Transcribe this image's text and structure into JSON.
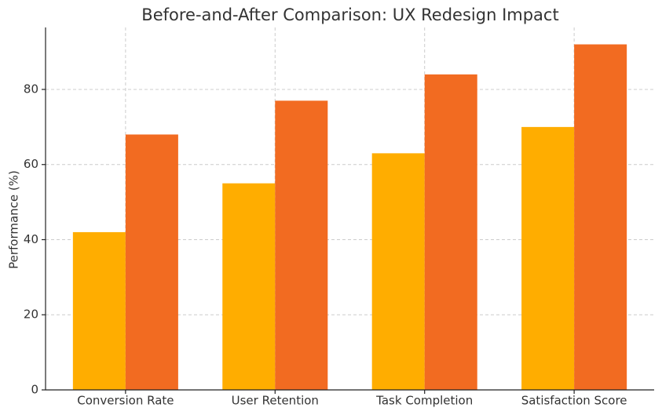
{
  "chart_data": {
    "type": "bar",
    "title": "Before-and-After Comparison: UX Redesign Impact",
    "y_label": "Performance (%)",
    "categories": [
      "Conversion Rate",
      "User Retention",
      "Task Completion",
      "Satisfaction Score"
    ],
    "series": [
      {
        "color": "#ffad00",
        "values": [
          42,
          55,
          63,
          70
        ]
      },
      {
        "color": "#f26b21",
        "values": [
          68,
          77,
          84,
          92
        ]
      }
    ],
    "ylim": [
      0,
      96.5
    ],
    "yticks": [
      0,
      20,
      40,
      60,
      80
    ],
    "grid": true
  }
}
